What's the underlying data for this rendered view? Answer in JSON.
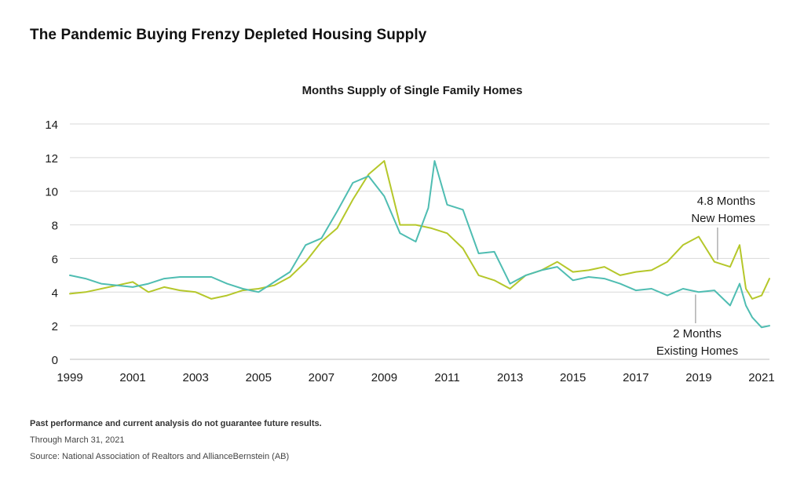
{
  "page": {
    "headline": "The Pandemic Buying Frenzy Depleted Housing Supply",
    "disclaimer": "Past performance and current analysis do not guarantee future results.",
    "through": "Through March 31, 2021",
    "source": "Source: National Association of Realtors and AllianceBernstein (AB)"
  },
  "colors": {
    "new_homes": "#b5c72a",
    "existing_homes": "#4fbdb2",
    "grid": "#d9d9d9",
    "text": "#1a1a1a"
  },
  "chart_data": {
    "type": "line",
    "title": "Months Supply of Single Family Homes",
    "xlabel": "",
    "ylabel": "",
    "xlim": [
      1999,
      2021.25
    ],
    "ylim": [
      0,
      14
    ],
    "grid": true,
    "x_ticks": [
      "1999",
      "2001",
      "2003",
      "2005",
      "2007",
      "2009",
      "2011",
      "2013",
      "2015",
      "2017",
      "2019",
      "2021"
    ],
    "y_ticks": [
      "0",
      "2",
      "4",
      "6",
      "8",
      "10",
      "12",
      "14"
    ],
    "series": [
      {
        "key": "new",
        "color": "#b5c72a",
        "x": [
          1999.0,
          1999.5,
          2000.0,
          2000.5,
          2001.0,
          2001.5,
          2002.0,
          2002.5,
          2003.0,
          2003.5,
          2004.0,
          2004.5,
          2005.0,
          2005.5,
          2006.0,
          2006.5,
          2007.0,
          2007.5,
          2008.0,
          2008.5,
          2009.0,
          2009.5,
          2010.0,
          2010.5,
          2011.0,
          2011.5,
          2012.0,
          2012.5,
          2013.0,
          2013.5,
          2014.0,
          2014.5,
          2015.0,
          2015.5,
          2016.0,
          2016.5,
          2017.0,
          2017.5,
          2018.0,
          2018.5,
          2019.0,
          2019.5,
          2020.0,
          2020.3,
          2020.5,
          2020.7,
          2021.0,
          2021.25
        ],
        "values": [
          3.9,
          4.0,
          4.2,
          4.4,
          4.6,
          4.0,
          4.3,
          4.1,
          4.0,
          3.6,
          3.8,
          4.1,
          4.2,
          4.4,
          4.9,
          5.8,
          7.0,
          7.8,
          9.5,
          11.0,
          11.8,
          8.0,
          8.0,
          7.8,
          7.5,
          6.6,
          5.0,
          4.7,
          4.2,
          5.0,
          5.3,
          5.8,
          5.2,
          5.3,
          5.5,
          5.0,
          5.2,
          5.3,
          5.8,
          6.8,
          7.3,
          5.8,
          5.5,
          6.8,
          4.2,
          3.6,
          3.8,
          4.8
        ]
      },
      {
        "key": "existing",
        "color": "#4fbdb2",
        "x": [
          1999.0,
          1999.5,
          2000.0,
          2000.5,
          2001.0,
          2001.5,
          2002.0,
          2002.5,
          2003.0,
          2003.5,
          2004.0,
          2004.5,
          2005.0,
          2005.5,
          2006.0,
          2006.5,
          2007.0,
          2007.5,
          2008.0,
          2008.5,
          2009.0,
          2009.5,
          2010.0,
          2010.4,
          2010.6,
          2011.0,
          2011.5,
          2012.0,
          2012.5,
          2013.0,
          2013.5,
          2014.0,
          2014.5,
          2015.0,
          2015.5,
          2016.0,
          2016.5,
          2017.0,
          2017.5,
          2018.0,
          2018.5,
          2019.0,
          2019.5,
          2020.0,
          2020.3,
          2020.5,
          2020.7,
          2021.0,
          2021.25
        ],
        "values": [
          5.0,
          4.8,
          4.5,
          4.4,
          4.3,
          4.5,
          4.8,
          4.9,
          4.9,
          4.9,
          4.5,
          4.2,
          4.0,
          4.6,
          5.2,
          6.8,
          7.2,
          8.8,
          10.5,
          10.9,
          9.7,
          7.5,
          7.0,
          9.0,
          11.8,
          9.2,
          8.9,
          6.3,
          6.4,
          4.5,
          5.0,
          5.3,
          5.5,
          4.7,
          4.9,
          4.8,
          4.5,
          4.1,
          4.2,
          3.8,
          4.2,
          4.0,
          4.1,
          3.2,
          4.5,
          3.2,
          2.5,
          1.9,
          2.0
        ]
      }
    ],
    "annotations": [
      {
        "series": "new",
        "x": 2019.6,
        "lines": [
          "4.8 Months",
          "New Homes"
        ]
      },
      {
        "series": "existing",
        "x": 2018.9,
        "lines": [
          "2 Months",
          "Existing Homes"
        ]
      }
    ]
  }
}
